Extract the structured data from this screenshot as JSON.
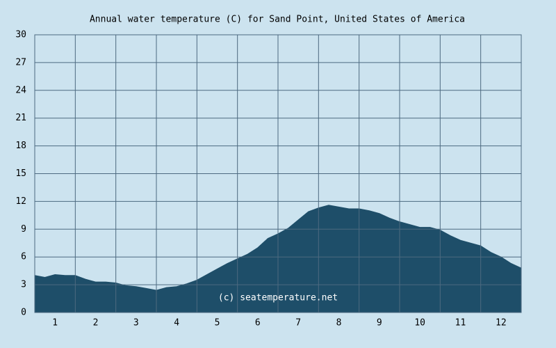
{
  "chart_data": {
    "type": "area",
    "title": "Annual water temperature (C) for Sand Point, United States of America",
    "annotation": "(c) seatemperature.net",
    "x": [
      0.5,
      0.75,
      1,
      1.25,
      1.5,
      1.75,
      2,
      2.25,
      2.5,
      2.75,
      3,
      3.25,
      3.5,
      3.75,
      4,
      4.25,
      4.5,
      4.75,
      5,
      5.25,
      5.5,
      5.75,
      6,
      6.25,
      6.5,
      6.75,
      7,
      7.25,
      7.5,
      7.75,
      8,
      8.25,
      8.5,
      8.75,
      9,
      9.25,
      9.5,
      9.75,
      10,
      10.25,
      10.5,
      10.75,
      11,
      11.25,
      11.5,
      11.75,
      12,
      12.25,
      12.5
    ],
    "values": [
      4.0,
      3.8,
      4.1,
      4.0,
      4.0,
      3.6,
      3.3,
      3.3,
      3.2,
      2.9,
      2.8,
      2.6,
      2.4,
      2.7,
      2.8,
      3.1,
      3.5,
      4.1,
      4.7,
      5.3,
      5.8,
      6.3,
      7.0,
      8.0,
      8.5,
      9.1,
      10.0,
      10.9,
      11.3,
      11.6,
      11.4,
      11.2,
      11.2,
      11.0,
      10.7,
      10.2,
      9.8,
      9.5,
      9.2,
      9.2,
      8.9,
      8.3,
      7.8,
      7.5,
      7.2,
      6.5,
      6.0,
      5.3,
      4.8
    ],
    "color": "#1e4e69",
    "xlim": [
      0.5,
      12.5
    ],
    "xticks": [
      1,
      2,
      3,
      4,
      5,
      6,
      7,
      8,
      9,
      10,
      11,
      12
    ],
    "ylim": [
      0,
      30
    ],
    "yticks": [
      0,
      3,
      6,
      9,
      12,
      15,
      18,
      21,
      24,
      27,
      30
    ],
    "grid": true
  }
}
